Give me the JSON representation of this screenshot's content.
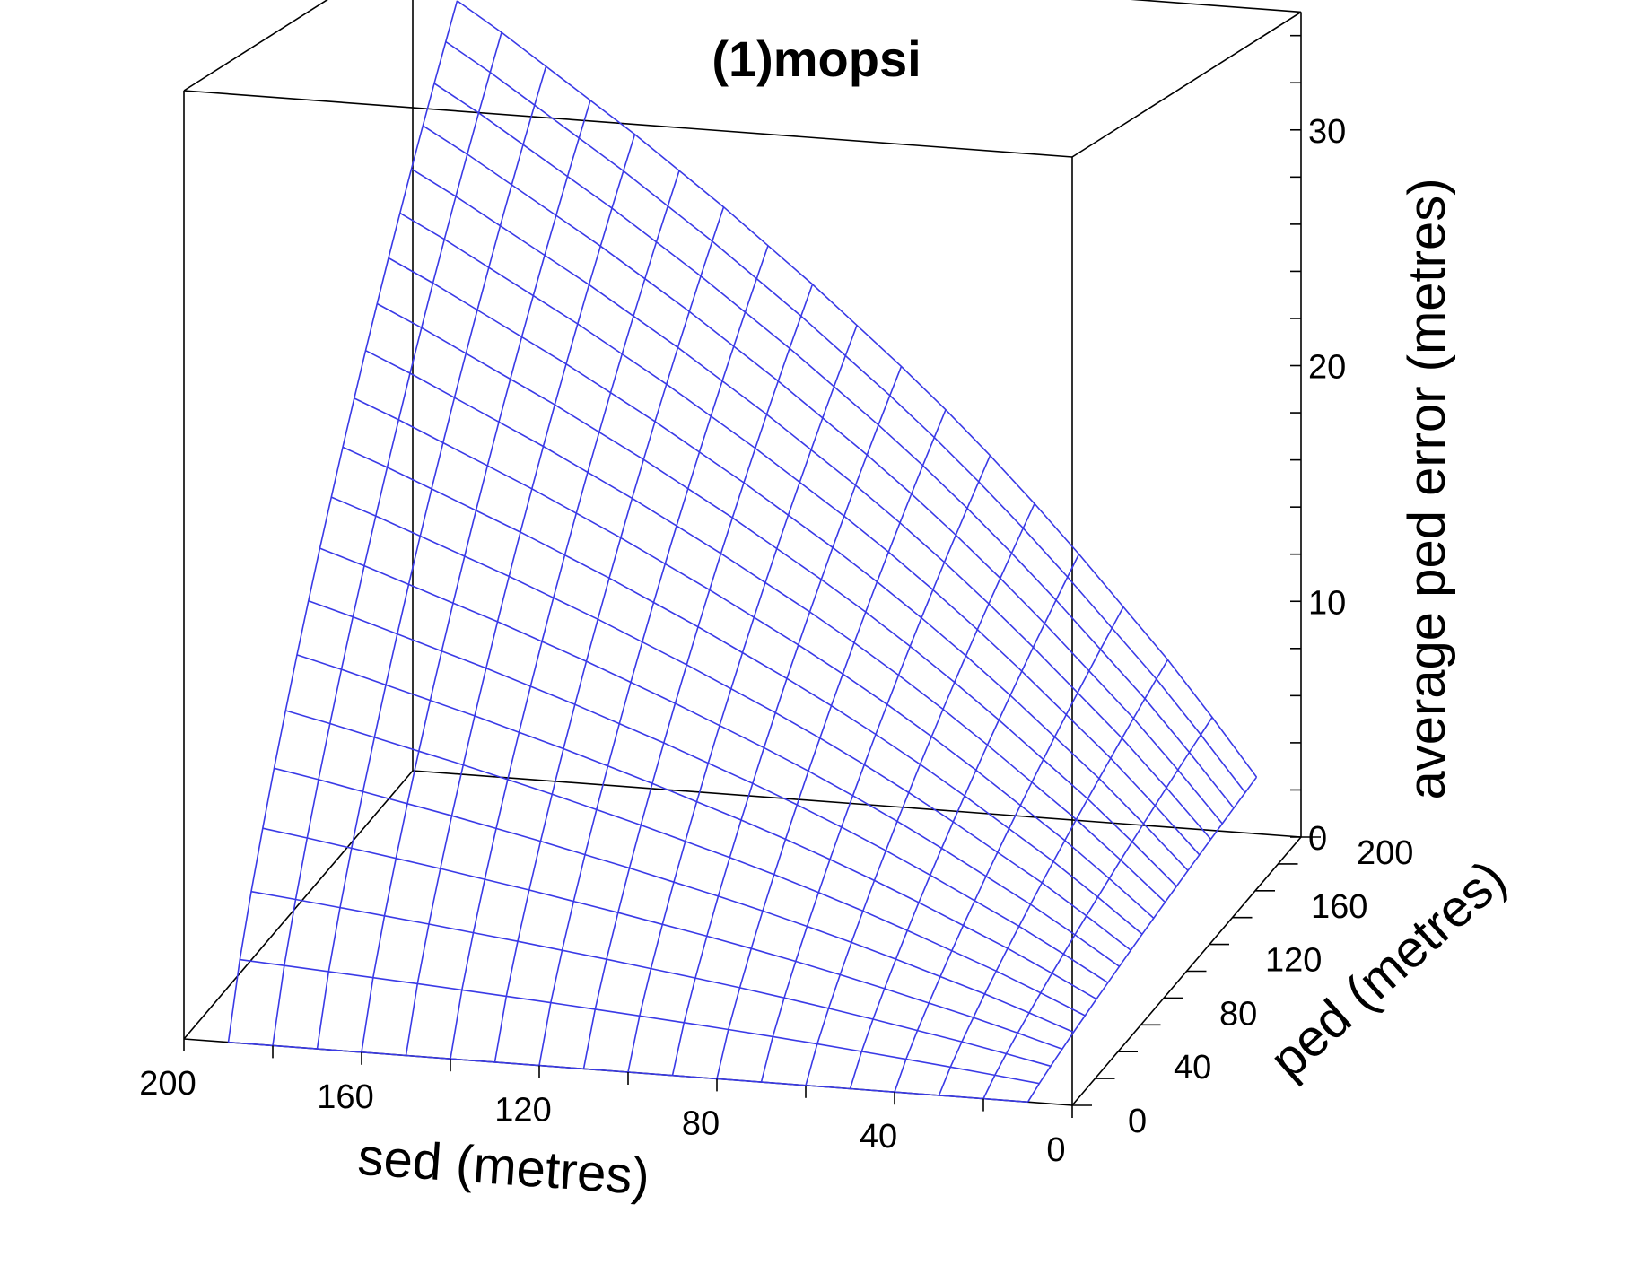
{
  "chart_data": {
    "type": "surface",
    "title": "(1)mopsi",
    "xlabel": "sed (metres)",
    "ylabel": "ped (metres)",
    "zlabel": "average ped error (metres)",
    "x_ticks": [
      "200",
      "160",
      "120",
      "80",
      "40",
      "0"
    ],
    "y_ticks": [
      "0",
      "40",
      "80",
      "120",
      "160",
      "200"
    ],
    "z_ticks": [
      "0",
      "10",
      "20",
      "30"
    ],
    "xlim": [
      0,
      200
    ],
    "ylim": [
      0,
      200
    ],
    "zlim": [
      0,
      35
    ],
    "grid": false,
    "colors": {
      "surface": "#3a3ae6",
      "box": "#000000"
    },
    "surface": {
      "sed": [
        10,
        20,
        30,
        40,
        50,
        60,
        70,
        80,
        90,
        100,
        110,
        120,
        130,
        140,
        150,
        160,
        170,
        180,
        190
      ],
      "ped": [
        0,
        10,
        20,
        30,
        40,
        50,
        60,
        70,
        80,
        90,
        100,
        110,
        120,
        130,
        140,
        150,
        160,
        170,
        180,
        190,
        200
      ],
      "z_formula_note": "",
      "z_at_ped_200_by_sed": [
        2.4,
        4.8,
        7.1,
        9.2,
        11.3,
        13.3,
        15.2,
        17.0,
        18.7,
        20.3,
        21.9,
        23.4,
        24.9,
        26.3,
        27.7,
        29.0,
        30.3,
        31.6,
        32.8
      ]
    }
  }
}
